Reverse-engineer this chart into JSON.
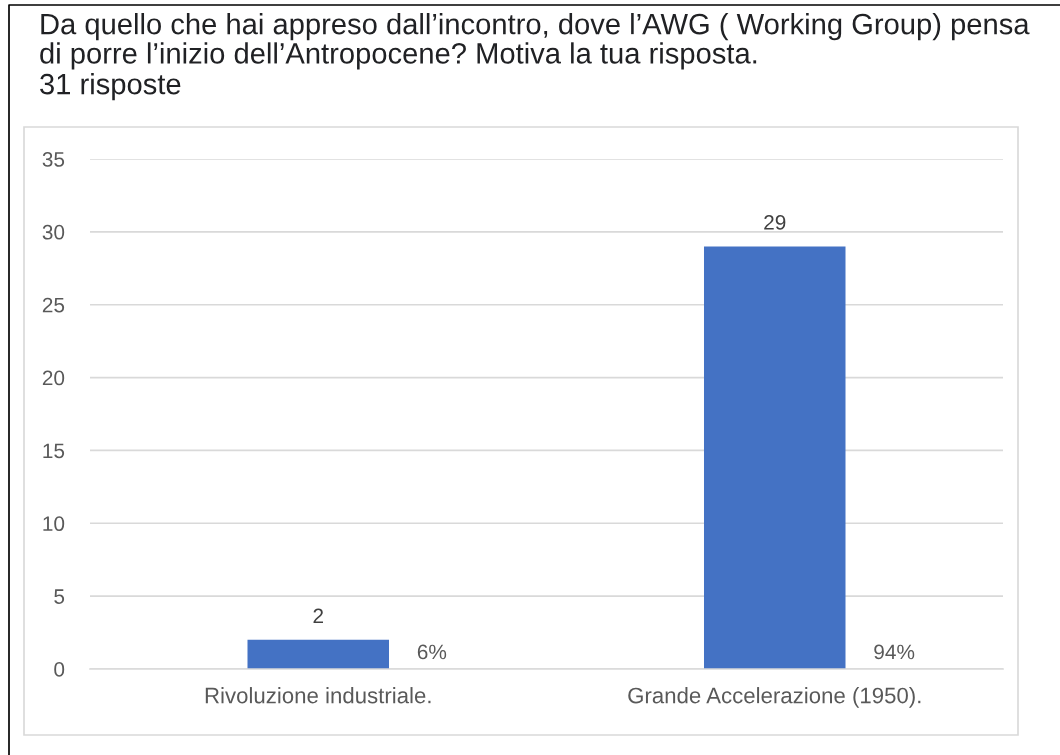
{
  "chart_data": {
    "type": "bar",
    "title": "Da quello che hai appreso dall’incontro, dove l’AWG ( Working Group) pensa di porre l’inizio dell’Antropocene? Motiva la tua risposta.",
    "subtitle": "31 risposte",
    "categories": [
      "Rivoluzione industriale.",
      "Grande Accelerazione (1950)."
    ],
    "values": [
      2,
      29
    ],
    "color": "#4472c4",
    "ylim": [
      0,
      35
    ],
    "yticks": [
      0,
      5,
      10,
      15,
      20,
      25,
      30,
      35
    ],
    "grid": "y",
    "data_labels": true,
    "annotations": [
      "6%",
      "94%"
    ]
  }
}
